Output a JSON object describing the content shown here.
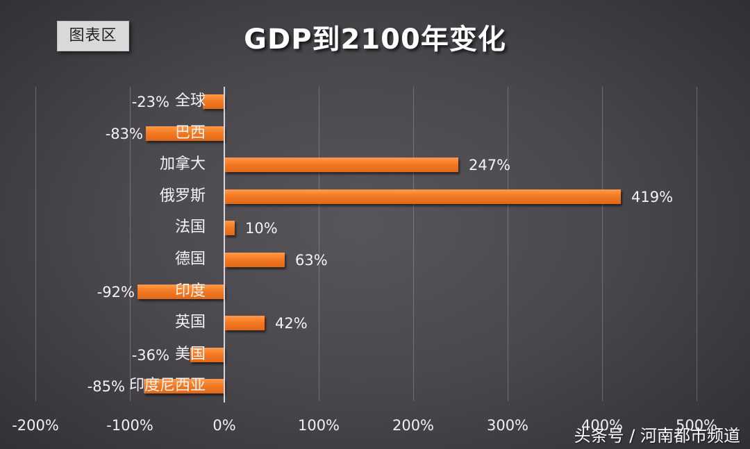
{
  "chart_area_tag": "图表区",
  "title": "GDP到2100年变化",
  "watermark": "头条号 / 河南都市频道",
  "colors": {
    "bar": "#f47a22",
    "background": "#4a484d",
    "text": "#f4f4f4"
  },
  "axis": {
    "ticks": [
      "-200%",
      "-100%",
      "0%",
      "100%",
      "200%",
      "300%",
      "400%",
      "500%"
    ]
  },
  "bars": [
    {
      "label": "全球",
      "value_label": "-23%"
    },
    {
      "label": "巴西",
      "value_label": "-83%"
    },
    {
      "label": "加拿大",
      "value_label": "247%"
    },
    {
      "label": "俄罗斯",
      "value_label": "419%"
    },
    {
      "label": "法国",
      "value_label": "10%"
    },
    {
      "label": "德国",
      "value_label": "63%"
    },
    {
      "label": "印度",
      "value_label": "-92%"
    },
    {
      "label": "英国",
      "value_label": "42%"
    },
    {
      "label": "美国",
      "value_label": "-36%"
    },
    {
      "label": "印度尼西亚",
      "value_label": "-85%"
    }
  ],
  "chart_data": {
    "type": "bar",
    "orientation": "horizontal",
    "title": "GDP到2100年变化",
    "categories": [
      "全球",
      "巴西",
      "加拿大",
      "俄罗斯",
      "法国",
      "德国",
      "印度",
      "英国",
      "美国",
      "印度尼西亚"
    ],
    "values": [
      -23,
      -83,
      247,
      419,
      10,
      63,
      -92,
      42,
      -36,
      -85
    ],
    "value_labels": [
      "-23%",
      "-83%",
      "247%",
      "419%",
      "10%",
      "63%",
      "-92%",
      "42%",
      "-36%",
      "-85%"
    ],
    "xlabel": "",
    "ylabel": "",
    "xlim": [
      -200,
      500
    ],
    "x_ticks": [
      -200,
      -100,
      0,
      100,
      200,
      300,
      400,
      500
    ],
    "x_tick_format": "percent",
    "grid": "vertical",
    "legend": "none"
  }
}
